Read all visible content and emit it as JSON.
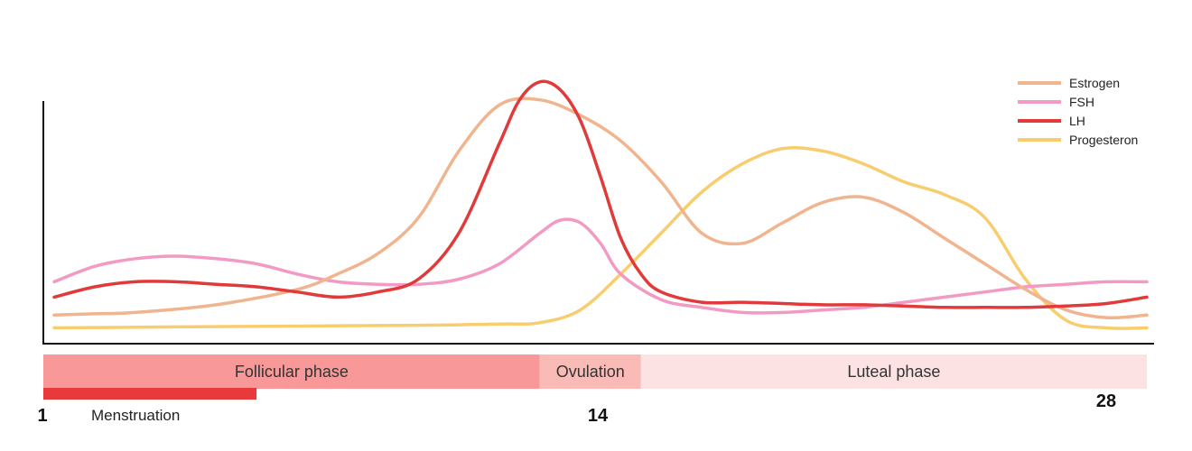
{
  "chart_data": {
    "type": "line",
    "title": "",
    "xlabel": "",
    "ylabel": "",
    "xlim": [
      1,
      28
    ],
    "grid": false,
    "legend_position": "top-right",
    "colors": {
      "Estrogen": "#f0b48e",
      "FSH": "#f29ac4",
      "LH": "#e03a3a",
      "Progesteron": "#f8cd6e"
    },
    "series": [
      {
        "name": "Estrogen",
        "x": [
          1,
          2,
          3,
          5,
          7,
          8,
          9,
          10,
          11,
          12,
          13,
          14,
          15,
          16,
          17,
          18,
          19,
          20,
          21,
          22,
          23,
          24,
          25,
          26,
          27,
          28
        ],
        "values": [
          8,
          8.5,
          9,
          12,
          18,
          24,
          32,
          46,
          72,
          90,
          92,
          86,
          76,
          60,
          40,
          36,
          44,
          52,
          54,
          48,
          38,
          28,
          18,
          10,
          7,
          8
        ]
      },
      {
        "name": "FSH",
        "x": [
          1,
          2,
          3,
          4,
          5,
          6,
          7,
          8,
          9,
          10,
          11,
          12,
          13,
          13.5,
          14,
          14.5,
          15,
          16,
          17,
          18,
          19,
          20,
          21,
          22,
          23,
          24,
          25,
          26,
          27,
          28
        ],
        "values": [
          21,
          27,
          30,
          31,
          30,
          28,
          24,
          21,
          20,
          20,
          22,
          28,
          40,
          45,
          44,
          36,
          24,
          14,
          11,
          9,
          9,
          10,
          11,
          13,
          15,
          17,
          19,
          20,
          21,
          21
        ]
      },
      {
        "name": "LH",
        "x": [
          1,
          2,
          3,
          4,
          5,
          6,
          7,
          8,
          9,
          10,
          11,
          12,
          12.5,
          13,
          13.5,
          14,
          14.5,
          15,
          15.5,
          16,
          17,
          18,
          19,
          20,
          21,
          22,
          23,
          24,
          25,
          26,
          27,
          28
        ],
        "values": [
          15,
          19,
          21,
          21,
          20,
          19,
          17,
          15,
          17,
          22,
          40,
          75,
          92,
          99,
          96,
          84,
          62,
          38,
          24,
          17,
          13,
          13,
          12.5,
          12,
          12,
          11.5,
          11,
          11,
          11,
          11.5,
          12.5,
          15
        ]
      },
      {
        "name": "Progesteron",
        "x": [
          1,
          5,
          10,
          12,
          13,
          14,
          15,
          16,
          17,
          18,
          19,
          20,
          21,
          22,
          23,
          24,
          25,
          26,
          27,
          28
        ],
        "values": [
          3,
          3.5,
          4,
          4.5,
          5,
          10,
          24,
          40,
          56,
          67,
          73,
          72,
          67,
          60,
          55,
          46,
          22,
          6,
          3,
          3
        ]
      }
    ],
    "phases": [
      {
        "label": "Follicular phase",
        "start": 1,
        "end": 13,
        "color": "#f99898"
      },
      {
        "label": "Ovulation",
        "start": 13,
        "end": 15.5,
        "color": "#fabab6"
      },
      {
        "label": "Luteal phase",
        "start": 15.5,
        "end": 28,
        "color": "#fde2e3"
      }
    ],
    "menstruation": {
      "label": "Menstruation",
      "start": 1,
      "end": 6,
      "color": "#e83a3a"
    },
    "day_labels": [
      {
        "day": 1,
        "text": "1"
      },
      {
        "day": 14,
        "text": "14"
      },
      {
        "day": 28,
        "text": "28"
      }
    ]
  }
}
